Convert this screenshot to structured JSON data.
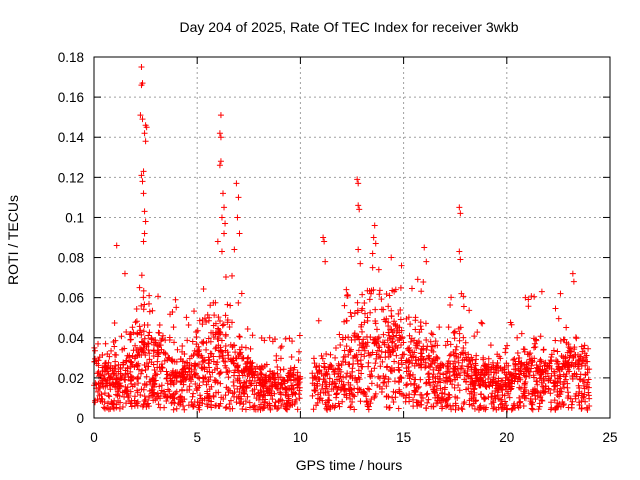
{
  "chart_data": {
    "type": "scatter",
    "title": "Day 204 of 2025, Rate Of TEC Index for receiver 3wkb",
    "xlabel": "GPS time / hours",
    "ylabel": "ROTI / TECUs",
    "xlim": [
      0,
      25
    ],
    "ylim": [
      0,
      0.18
    ],
    "x_ticks": [
      0,
      5,
      10,
      15,
      20,
      25
    ],
    "x_tick_labels": [
      "0",
      "5",
      "10",
      "15",
      "20",
      "25"
    ],
    "y_ticks": [
      0,
      0.02,
      0.04,
      0.06,
      0.08,
      0.1,
      0.12,
      0.14,
      0.16,
      0.18
    ],
    "y_tick_labels": [
      "0",
      "0.02",
      "0.04",
      "0.06",
      "0.08",
      "0.1",
      "0.12",
      "0.14",
      "0.16",
      "0.18"
    ],
    "grid": true,
    "marker": "+",
    "series_color": "#ff0000",
    "data_range_hours": [
      0,
      24
    ],
    "data_gap_hours": [
      10.0,
      10.55
    ],
    "notable_points": [
      {
        "x": 2.3,
        "y": 0.175
      },
      {
        "x": 2.35,
        "y": 0.167
      },
      {
        "x": 2.3,
        "y": 0.166
      },
      {
        "x": 2.25,
        "y": 0.151
      },
      {
        "x": 2.35,
        "y": 0.149
      },
      {
        "x": 2.5,
        "y": 0.146
      },
      {
        "x": 2.55,
        "y": 0.145
      },
      {
        "x": 2.45,
        "y": 0.142
      },
      {
        "x": 2.5,
        "y": 0.138
      },
      {
        "x": 2.4,
        "y": 0.123
      },
      {
        "x": 2.3,
        "y": 0.121
      },
      {
        "x": 2.35,
        "y": 0.118
      },
      {
        "x": 2.4,
        "y": 0.112
      },
      {
        "x": 2.45,
        "y": 0.103
      },
      {
        "x": 2.5,
        "y": 0.098
      },
      {
        "x": 2.45,
        "y": 0.092
      },
      {
        "x": 2.4,
        "y": 0.088
      },
      {
        "x": 1.1,
        "y": 0.086
      },
      {
        "x": 6.15,
        "y": 0.151
      },
      {
        "x": 6.1,
        "y": 0.142
      },
      {
        "x": 6.15,
        "y": 0.14
      },
      {
        "x": 6.15,
        "y": 0.128
      },
      {
        "x": 6.1,
        "y": 0.126
      },
      {
        "x": 6.25,
        "y": 0.112
      },
      {
        "x": 6.3,
        "y": 0.105
      },
      {
        "x": 6.2,
        "y": 0.1
      },
      {
        "x": 6.35,
        "y": 0.097
      },
      {
        "x": 6.3,
        "y": 0.092
      },
      {
        "x": 6.0,
        "y": 0.088
      },
      {
        "x": 6.2,
        "y": 0.083
      },
      {
        "x": 6.9,
        "y": 0.117
      },
      {
        "x": 7.0,
        "y": 0.11
      },
      {
        "x": 6.95,
        "y": 0.1
      },
      {
        "x": 7.05,
        "y": 0.092
      },
      {
        "x": 6.8,
        "y": 0.084
      },
      {
        "x": 11.1,
        "y": 0.09
      },
      {
        "x": 11.15,
        "y": 0.088
      },
      {
        "x": 11.2,
        "y": 0.078
      },
      {
        "x": 12.75,
        "y": 0.119
      },
      {
        "x": 12.8,
        "y": 0.117
      },
      {
        "x": 12.8,
        "y": 0.106
      },
      {
        "x": 12.85,
        "y": 0.104
      },
      {
        "x": 12.8,
        "y": 0.084
      },
      {
        "x": 12.9,
        "y": 0.077
      },
      {
        "x": 13.6,
        "y": 0.096
      },
      {
        "x": 13.55,
        "y": 0.09
      },
      {
        "x": 13.65,
        "y": 0.087
      },
      {
        "x": 13.5,
        "y": 0.082
      },
      {
        "x": 13.5,
        "y": 0.075
      },
      {
        "x": 13.8,
        "y": 0.074
      },
      {
        "x": 14.4,
        "y": 0.08
      },
      {
        "x": 14.9,
        "y": 0.076
      },
      {
        "x": 16.0,
        "y": 0.085
      },
      {
        "x": 16.1,
        "y": 0.078
      },
      {
        "x": 17.7,
        "y": 0.105
      },
      {
        "x": 17.75,
        "y": 0.102
      },
      {
        "x": 17.7,
        "y": 0.083
      },
      {
        "x": 17.75,
        "y": 0.079
      },
      {
        "x": 17.8,
        "y": 0.062
      },
      {
        "x": 21.7,
        "y": 0.063
      },
      {
        "x": 22.6,
        "y": 0.062
      },
      {
        "x": 23.2,
        "y": 0.072
      },
      {
        "x": 23.25,
        "y": 0.068
      },
      {
        "x": 20.9,
        "y": 0.06
      },
      {
        "x": 1.5,
        "y": 0.072
      }
    ]
  }
}
